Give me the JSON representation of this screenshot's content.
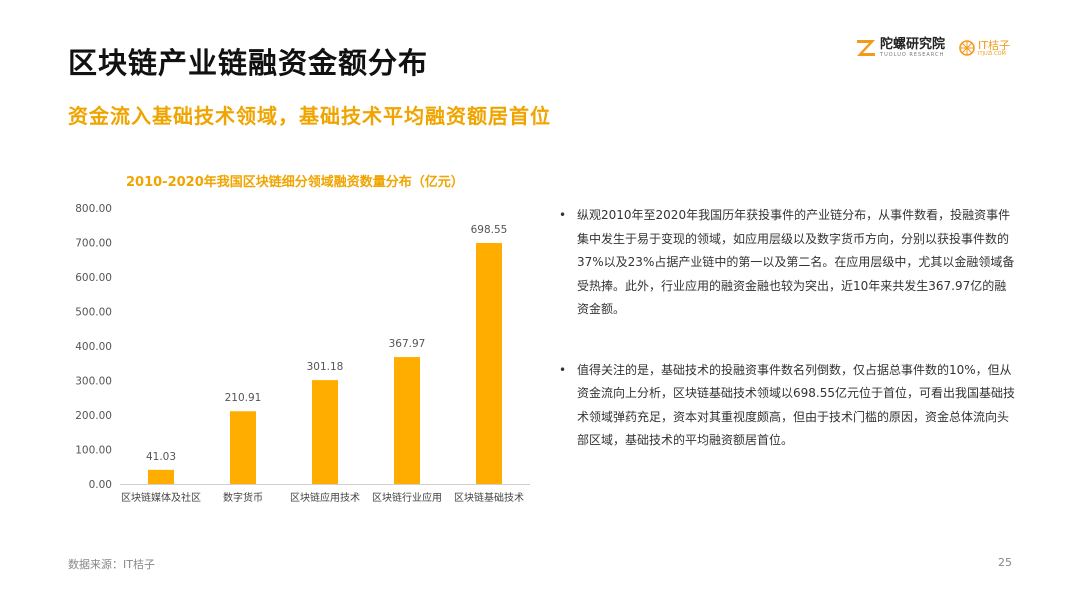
{
  "header": {
    "title": "区块链产业链融资金额分布",
    "subtitle": "资金流入基础技术领域，基础技术平均融资额居首位"
  },
  "logos": {
    "tuoluo_cn": "陀螺研究院",
    "tuoluo_en": "TUOLUO RESEARCH",
    "it_cn": "IT桔子",
    "it_en": "ITJUZI.COM",
    "brand_color": "#f39a1c"
  },
  "chart_data": {
    "type": "bar",
    "title": "2010-2020年我国区块链细分领域融资数量分布（亿元）",
    "categories": [
      "区块链媒体及社区",
      "数字货币",
      "区块链应用技术",
      "区块链行业应用",
      "区块链基础技术"
    ],
    "values": [
      41.03,
      210.91,
      301.18,
      367.97,
      698.55
    ],
    "value_labels": [
      "41.03",
      "210.91",
      "301.18",
      "367.97",
      "698.55"
    ],
    "ylim": [
      0,
      800
    ],
    "yticks": [
      "0.00",
      "100.00",
      "200.00",
      "300.00",
      "400.00",
      "500.00",
      "600.00",
      "700.00",
      "800.00"
    ],
    "grid": false,
    "bar_color": "#ffae00"
  },
  "bullets": [
    "纵观2010年至2020年我国历年获投事件的产业链分布，从事件数看，投融资事件集中发生于易于变现的领域，如应用层级以及数字货币方向，分别以获投事件数的37%以及23%占据产业链中的第一以及第二名。在应用层级中，尤其以金融领域备受热捧。此外，行业应用的融资金融也较为突出，近10年来共发生367.97亿的融资金额。",
    "值得关注的是，基础技术的投融资事件数名列倒数，仅占据总事件数的10%，但从资金流向上分析，区块链基础技术领域以698.55亿元位于首位，可看出我国基础技术领域弹药充足，资本对其重视度颇高，但由于技术门槛的原因，资金总体流向头部区域，基础技术的平均融资额居首位。"
  ],
  "footer": {
    "source": "数据来源：IT桔子",
    "page": "25"
  }
}
